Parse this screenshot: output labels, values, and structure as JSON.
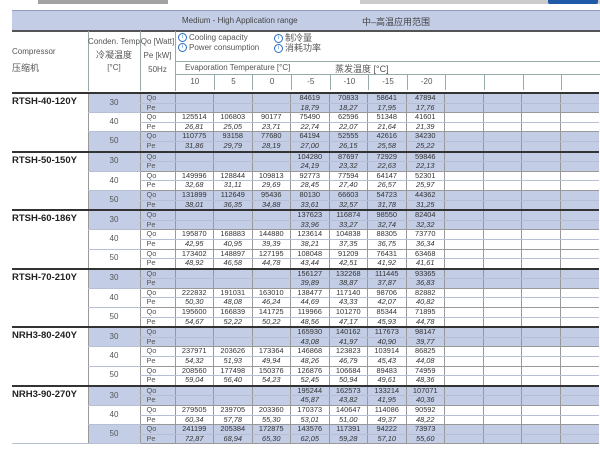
{
  "header": {
    "range_en": "Medium - High Application range",
    "range_cn": "中–高温应用范围",
    "compressor_en": "Compressor",
    "compressor_cn": "压缩机",
    "cond_en": "Conden. Temp",
    "cond_cn": "冷凝温度",
    "cond_unit": "[°C]",
    "qo_unit": "Qo [Watt]",
    "pe_unit": "Pe [kW]",
    "freq": "50Hz",
    "legend": [
      {
        "en": "Cooling capacity",
        "cn": "制冷量"
      },
      {
        "en": "Power consumption",
        "cn": "消耗功率"
      }
    ],
    "evap_en": "Evaporation Temperature [°C]",
    "evap_cn": "蒸发温度 [°C]",
    "evap_temps": [
      "10",
      "5",
      "0",
      "-5",
      "-10",
      "-15",
      "-20",
      "",
      "",
      "",
      ""
    ]
  },
  "colors": {
    "band": "#c3cde6",
    "icon": "#2a6fc0"
  },
  "row_labels": {
    "qo": "Qo",
    "pe": "Pe"
  },
  "models": [
    {
      "name": "RTSH-40-120Y",
      "conds": [
        {
          "t": "30",
          "qo": [
            "",
            "",
            "",
            "84619",
            "70833",
            "58641",
            "47894"
          ],
          "pe": [
            "",
            "",
            "",
            "18,79",
            "18,27",
            "17,95",
            "17,76"
          ]
        },
        {
          "t": "40",
          "qo": [
            "125514",
            "106803",
            "90177",
            "75490",
            "62596",
            "51348",
            "41601"
          ],
          "pe": [
            "26,81",
            "25,05",
            "23,71",
            "22,74",
            "22,07",
            "21,64",
            "21,39"
          ]
        },
        {
          "t": "50",
          "qo": [
            "110775",
            "93158",
            "77680",
            "64194",
            "52555",
            "42616",
            "34230"
          ],
          "pe": [
            "31,86",
            "29,79",
            "28,19",
            "27,00",
            "26,15",
            "25,58",
            "25,22"
          ]
        }
      ]
    },
    {
      "name": "RTSH-50-150Y",
      "conds": [
        {
          "t": "30",
          "qo": [
            "",
            "",
            "",
            "104280",
            "87697",
            "72929",
            "59846"
          ],
          "pe": [
            "",
            "",
            "",
            "24,19",
            "23,32",
            "22,63",
            "22,13"
          ]
        },
        {
          "t": "40",
          "qo": [
            "149996",
            "128844",
            "109813",
            "92773",
            "77594",
            "64147",
            "52301"
          ],
          "pe": [
            "32,68",
            "31,11",
            "29,69",
            "28,45",
            "27,40",
            "26,57",
            "25,97"
          ]
        },
        {
          "t": "50",
          "qo": [
            "131899",
            "112649",
            "95436",
            "80130",
            "66603",
            "54723",
            "44362"
          ],
          "pe": [
            "38,01",
            "36,35",
            "34,88",
            "33,61",
            "32,57",
            "31,78",
            "31,25"
          ]
        }
      ]
    },
    {
      "name": "RTSH-60-186Y",
      "conds": [
        {
          "t": "30",
          "qo": [
            "",
            "",
            "",
            "137623",
            "116874",
            "98550",
            "82404"
          ],
          "pe": [
            "",
            "",
            "",
            "33,96",
            "33,27",
            "32,74",
            "32,32"
          ]
        },
        {
          "t": "40",
          "qo": [
            "195870",
            "168883",
            "144880",
            "123614",
            "104838",
            "88305",
            "73770"
          ],
          "pe": [
            "42,95",
            "40,95",
            "39,39",
            "38,21",
            "37,35",
            "36,75",
            "36,34"
          ]
        },
        {
          "t": "50",
          "qo": [
            "173402",
            "148897",
            "127195",
            "108048",
            "91209",
            "76431",
            "63468"
          ],
          "pe": [
            "48,92",
            "46,58",
            "44,78",
            "43,44",
            "42,51",
            "41,92",
            "41,61"
          ]
        }
      ]
    },
    {
      "name": "RTSH-70-210Y",
      "conds": [
        {
          "t": "30",
          "qo": [
            "",
            "",
            "",
            "156127",
            "132268",
            "111445",
            "93365"
          ],
          "pe": [
            "",
            "",
            "",
            "39,89",
            "38,87",
            "37,87",
            "36,83"
          ]
        },
        {
          "t": "40",
          "qo": [
            "222832",
            "191031",
            "163010",
            "138477",
            "117140",
            "98706",
            "82882"
          ],
          "pe": [
            "50,30",
            "48,08",
            "46,24",
            "44,69",
            "43,33",
            "42,07",
            "40,82"
          ]
        },
        {
          "t": "50",
          "qo": [
            "195600",
            "166839",
            "141725",
            "119966",
            "101270",
            "85344",
            "71895"
          ],
          "pe": [
            "54,67",
            "52,22",
            "50,22",
            "48,56",
            "47,17",
            "45,93",
            "44,78"
          ]
        }
      ]
    },
    {
      "name": "NRH3-80-240Y",
      "conds": [
        {
          "t": "30",
          "qo": [
            "",
            "",
            "",
            "165930",
            "140162",
            "117673",
            "98147"
          ],
          "pe": [
            "",
            "",
            "",
            "43,08",
            "41,97",
            "40,90",
            "39,77"
          ]
        },
        {
          "t": "40",
          "qo": [
            "237971",
            "203626",
            "173364",
            "146868",
            "123823",
            "103914",
            "86825"
          ],
          "pe": [
            "54,32",
            "51,93",
            "49,94",
            "48,26",
            "46,79",
            "45,43",
            "44,08"
          ]
        },
        {
          "t": "50",
          "qo": [
            "208560",
            "177498",
            "150376",
            "126876",
            "106684",
            "89483",
            "74959"
          ],
          "pe": [
            "59,04",
            "56,40",
            "54,23",
            "52,45",
            "50,94",
            "49,61",
            "48,36"
          ]
        }
      ]
    },
    {
      "name": "NRH3-90-270Y",
      "conds": [
        {
          "t": "30",
          "qo": [
            "",
            "",
            "",
            "195244",
            "162573",
            "133214",
            "107071"
          ],
          "pe": [
            "",
            "",
            "",
            "45,87",
            "43,82",
            "41,95",
            "40,36"
          ]
        },
        {
          "t": "40",
          "qo": [
            "279505",
            "239705",
            "203360",
            "170373",
            "140647",
            "114086",
            "90592"
          ],
          "pe": [
            "60,34",
            "57,78",
            "55,30",
            "53,01",
            "51,00",
            "49,37",
            "48,22"
          ]
        },
        {
          "t": "50",
          "qo": [
            "241199",
            "205384",
            "172875",
            "143576",
            "117391",
            "94222",
            "73973"
          ],
          "pe": [
            "72,87",
            "68,94",
            "65,30",
            "62,05",
            "59,28",
            "57,10",
            "55,60"
          ]
        }
      ]
    }
  ]
}
